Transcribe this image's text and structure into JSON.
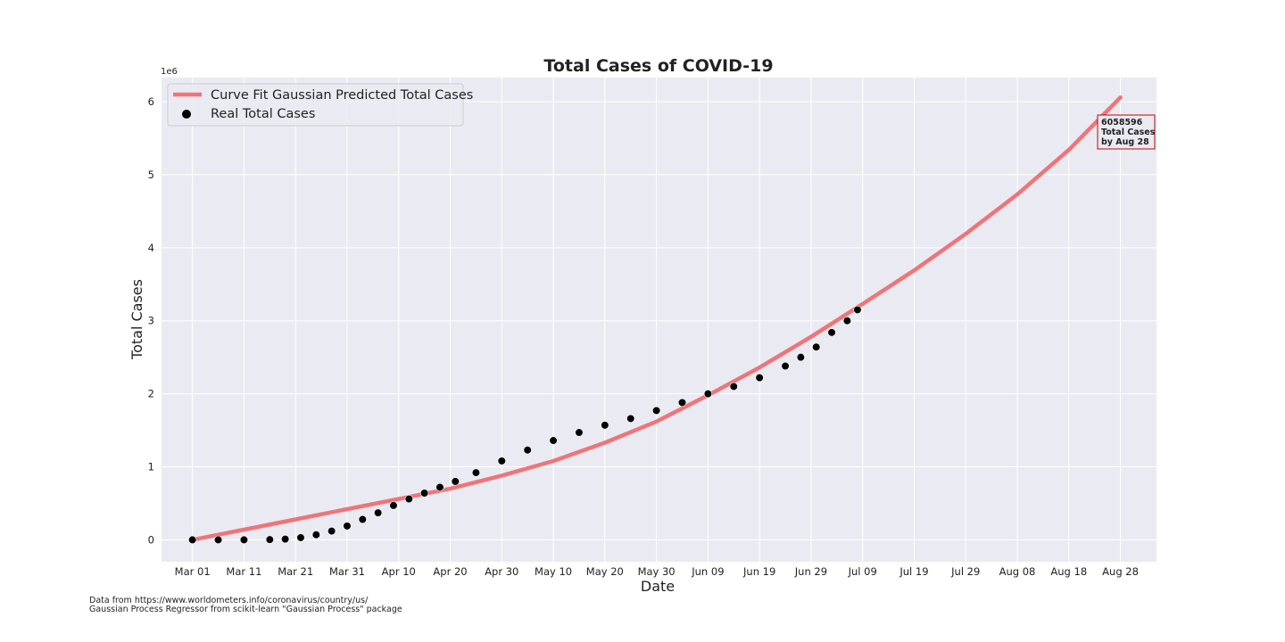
{
  "chart_data": {
    "type": "line",
    "title": "Total Cases of COVID-19",
    "xlabel": "Date",
    "ylabel": "Total Cases",
    "y_exponent_label": "1e6",
    "xlim": [
      "2020-02-24",
      "2020-09-04"
    ],
    "ylim": [
      -300000,
      6330000
    ],
    "grid": true,
    "legend_placement": "top-left",
    "x_tick_labels": [
      "Mar 01",
      "Mar 11",
      "Mar 21",
      "Mar 31",
      "Apr 10",
      "Apr 20",
      "Apr 30",
      "May 10",
      "May 20",
      "May 30",
      "Jun 09",
      "Jun 19",
      "Jun 29",
      "Jul 09",
      "Jul 19",
      "Jul 29",
      "Aug 08",
      "Aug 18",
      "Aug 28"
    ],
    "x_ticks": [
      "2020-03-01",
      "2020-03-11",
      "2020-03-21",
      "2020-03-31",
      "2020-04-10",
      "2020-04-20",
      "2020-04-30",
      "2020-05-10",
      "2020-05-20",
      "2020-05-30",
      "2020-06-09",
      "2020-06-19",
      "2020-06-29",
      "2020-07-09",
      "2020-07-19",
      "2020-07-29",
      "2020-08-08",
      "2020-08-18",
      "2020-08-28"
    ],
    "y_ticks": [
      0,
      1000000,
      2000000,
      3000000,
      4000000,
      5000000,
      6000000
    ],
    "y_tick_labels": [
      "0",
      "1",
      "2",
      "3",
      "4",
      "5",
      "6"
    ],
    "series": [
      {
        "name": "Curve Fit Gaussian Predicted Total Cases",
        "kind": "line",
        "color": "#f07478",
        "x": [
          "2020-03-01",
          "2020-03-11",
          "2020-03-21",
          "2020-03-31",
          "2020-04-10",
          "2020-04-20",
          "2020-04-30",
          "2020-05-10",
          "2020-05-20",
          "2020-05-30",
          "2020-06-09",
          "2020-06-19",
          "2020-06-29",
          "2020-07-09",
          "2020-07-19",
          "2020-07-29",
          "2020-08-08",
          "2020-08-18",
          "2020-08-28"
        ],
        "y": [
          0,
          140000,
          280000,
          420000,
          560000,
          700000,
          880000,
          1080000,
          1330000,
          1620000,
          1980000,
          2360000,
          2780000,
          3230000,
          3690000,
          4190000,
          4730000,
          5340000,
          6058596
        ]
      },
      {
        "name": "Real Total Cases",
        "kind": "scatter",
        "color": "#000000",
        "x": [
          "2020-03-01",
          "2020-03-06",
          "2020-03-11",
          "2020-03-16",
          "2020-03-19",
          "2020-03-22",
          "2020-03-25",
          "2020-03-28",
          "2020-03-31",
          "2020-04-03",
          "2020-04-06",
          "2020-04-09",
          "2020-04-12",
          "2020-04-15",
          "2020-04-18",
          "2020-04-21",
          "2020-04-25",
          "2020-04-30",
          "2020-05-05",
          "2020-05-10",
          "2020-05-15",
          "2020-05-20",
          "2020-05-25",
          "2020-05-30",
          "2020-06-04",
          "2020-06-09",
          "2020-06-14",
          "2020-06-19",
          "2020-06-24",
          "2020-06-27",
          "2020-06-30",
          "2020-07-03",
          "2020-07-06",
          "2020-07-08"
        ],
        "y": [
          0,
          0,
          0,
          3000,
          10000,
          30000,
          70000,
          120000,
          190000,
          280000,
          370000,
          470000,
          560000,
          640000,
          720000,
          800000,
          920000,
          1080000,
          1230000,
          1360000,
          1470000,
          1570000,
          1660000,
          1770000,
          1880000,
          2000000,
          2100000,
          2220000,
          2380000,
          2500000,
          2640000,
          2840000,
          3000000,
          3150000
        ]
      }
    ],
    "annotation": {
      "lines": [
        "6058596",
        "Total Cases",
        "by Aug 28"
      ],
      "border_color": "#cc0000"
    },
    "plot_background": "#eaeaf2"
  },
  "footnote": {
    "line1": "Data from https://www.worldometers.info/coronavirus/country/us/",
    "line2": "Gaussian Process Regressor from scikit-learn \"Gaussian Process\" package"
  }
}
